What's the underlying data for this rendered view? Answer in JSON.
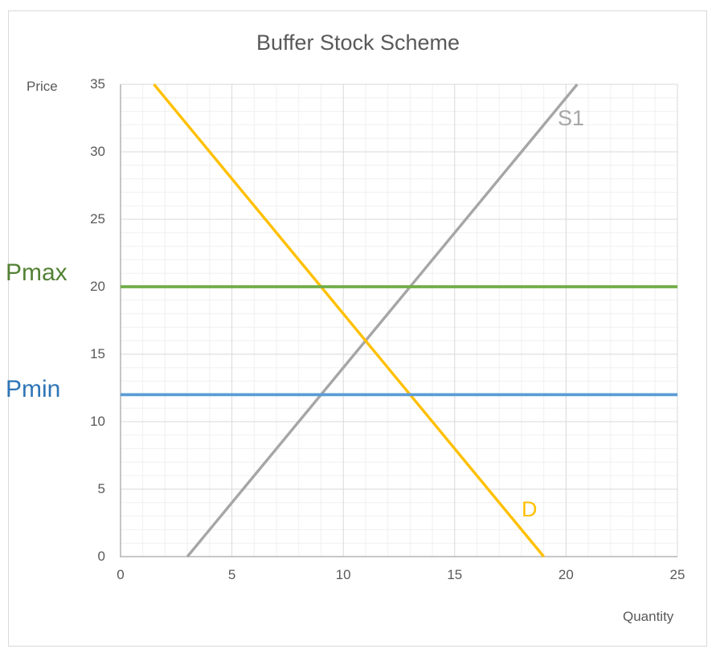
{
  "title": "Buffer Stock Scheme",
  "axes": {
    "x_label": "Quantity",
    "y_label": "Price"
  },
  "annotations": {
    "pmax_label": "Pmax",
    "pmin_label": "Pmin",
    "s1_label": "S1",
    "d_label": "D"
  },
  "colors": {
    "title_text": "#595959",
    "tick_text": "#595959",
    "axis_line": "#BFBFBF",
    "grid_minor": "#F0F0F0",
    "grid_major": "#D9D9D9",
    "chart_border": "#D9D9D9",
    "supply_line": "#A6A6A6",
    "demand_line": "#FFC000",
    "pmax_line": "#70AD47",
    "pmin_line": "#5B9BD5",
    "pmax_text": "#538135",
    "pmin_text": "#2E75B6"
  },
  "chart_data": {
    "type": "line",
    "title": "Buffer Stock Scheme",
    "xlabel": "Quantity",
    "ylabel": "Price",
    "xlim": [
      0,
      25
    ],
    "ylim": [
      0,
      35
    ],
    "x_ticks": [
      0,
      5,
      10,
      15,
      20,
      25
    ],
    "y_ticks": [
      0,
      5,
      10,
      15,
      20,
      25,
      30,
      35
    ],
    "minor_grid_step": 1,
    "major_grid_step": 5,
    "grid": true,
    "legend": "none",
    "series": [
      {
        "name": "S1",
        "color": "#A6A6A6",
        "points": [
          [
            3,
            0
          ],
          [
            20.5,
            35
          ]
        ]
      },
      {
        "name": "D",
        "color": "#FFC000",
        "points": [
          [
            1.5,
            35
          ],
          [
            19,
            0
          ]
        ]
      },
      {
        "name": "Pmax",
        "color": "#70AD47",
        "points": [
          [
            0,
            20
          ],
          [
            25,
            20
          ]
        ],
        "price_level": 20
      },
      {
        "name": "Pmin",
        "color": "#5B9BD5",
        "points": [
          [
            0,
            12
          ],
          [
            25,
            12
          ]
        ],
        "price_level": 12
      }
    ]
  }
}
